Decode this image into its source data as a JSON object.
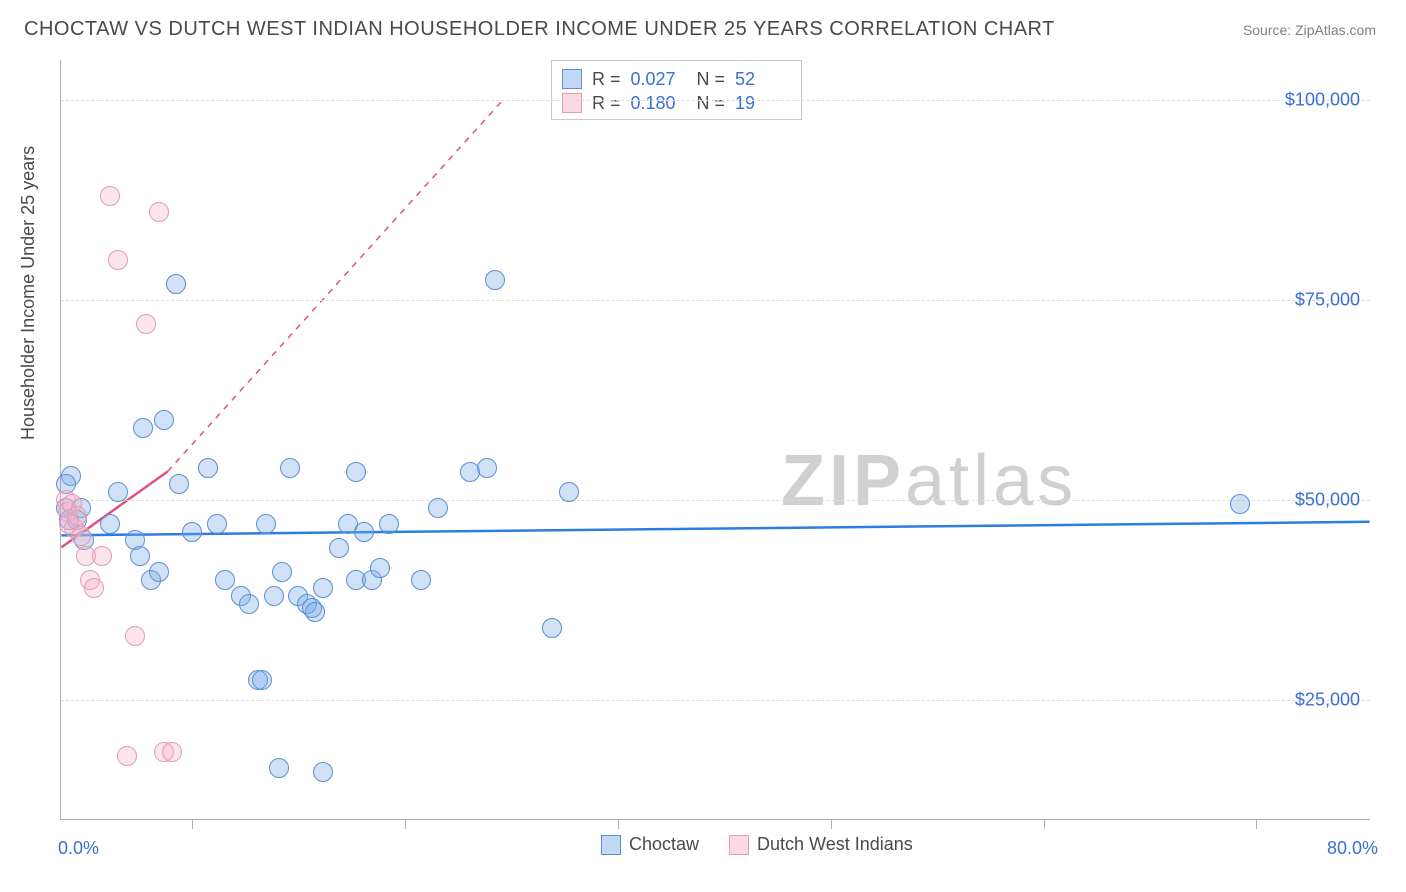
{
  "title": "CHOCTAW VS DUTCH WEST INDIAN HOUSEHOLDER INCOME UNDER 25 YEARS CORRELATION CHART",
  "source": "Source: ZipAtlas.com",
  "watermark_a": "ZIP",
  "watermark_b": "atlas",
  "yaxis_title": "Householder Income Under 25 years",
  "chart": {
    "type": "scatter",
    "xlim": [
      0,
      80
    ],
    "ylim": [
      10000,
      105000
    ],
    "x_min_label": "0.0%",
    "x_max_label": "80.0%",
    "grid_color": "#dcdcdc",
    "axis_color": "#b0b0b0",
    "background_color": "#ffffff",
    "marker_radius": 10,
    "yticks": [
      {
        "v": 25000,
        "label": "$25,000"
      },
      {
        "v": 50000,
        "label": "$50,000"
      },
      {
        "v": 75000,
        "label": "$75,000"
      },
      {
        "v": 100000,
        "label": "$100,000"
      }
    ],
    "xticks": [
      8,
      21,
      34,
      47,
      60,
      73
    ],
    "series": [
      {
        "key": "a",
        "name": "Choctaw",
        "color_fill": "rgba(120,170,230,0.35)",
        "color_stroke": "#5a8fd6",
        "trend_color": "#2b7de1",
        "trend": {
          "x1": 0,
          "y1": 45500,
          "x2": 80,
          "y2": 47200,
          "dashed": false,
          "width": 2.5
        },
        "R": "0.027",
        "N": "52",
        "points": [
          [
            0.3,
            49000
          ],
          [
            0.5,
            47500
          ],
          [
            0.6,
            53000
          ],
          [
            1.2,
            49000
          ],
          [
            1.4,
            45000
          ],
          [
            3.0,
            47000
          ],
          [
            3.5,
            51000
          ],
          [
            4.5,
            45000
          ],
          [
            4.8,
            43000
          ],
          [
            5.0,
            59000
          ],
          [
            5.5,
            40000
          ],
          [
            6.0,
            41000
          ],
          [
            6.3,
            60000
          ],
          [
            7.0,
            77000
          ],
          [
            7.2,
            52000
          ],
          [
            8.0,
            46000
          ],
          [
            9.0,
            54000
          ],
          [
            9.5,
            47000
          ],
          [
            10.0,
            40000
          ],
          [
            11.0,
            38000
          ],
          [
            11.5,
            37000
          ],
          [
            12.0,
            27500
          ],
          [
            12.3,
            27500
          ],
          [
            12.5,
            47000
          ],
          [
            13.0,
            38000
          ],
          [
            13.3,
            16500
          ],
          [
            13.5,
            41000
          ],
          [
            14.0,
            54000
          ],
          [
            14.5,
            38000
          ],
          [
            15.0,
            37000
          ],
          [
            15.3,
            36500
          ],
          [
            15.5,
            36000
          ],
          [
            16.0,
            39000
          ],
          [
            16.0,
            16000
          ],
          [
            17.0,
            44000
          ],
          [
            17.5,
            47000
          ],
          [
            18.0,
            40000
          ],
          [
            18.0,
            53500
          ],
          [
            18.5,
            46000
          ],
          [
            19.0,
            40000
          ],
          [
            19.5,
            41500
          ],
          [
            20.0,
            47000
          ],
          [
            22.0,
            40000
          ],
          [
            23.0,
            49000
          ],
          [
            25.0,
            53500
          ],
          [
            26.0,
            54000
          ],
          [
            26.5,
            77500
          ],
          [
            30.0,
            34000
          ],
          [
            31.0,
            51000
          ],
          [
            72.0,
            49500
          ],
          [
            0.3,
            52000
          ],
          [
            1.0,
            47500
          ]
        ]
      },
      {
        "key": "b",
        "name": "Dutch West Indians",
        "color_fill": "rgba(245,180,200,0.35)",
        "color_stroke": "#e69ab0",
        "trend_color": "#e05080",
        "trend_solid": {
          "x1": 0,
          "y1": 44000,
          "x2": 6.5,
          "y2": 53500,
          "dashed": false,
          "width": 2.5
        },
        "trend": {
          "x1": 6.5,
          "y1": 53500,
          "x2": 27,
          "y2": 100000,
          "dashed": true,
          "width": 1.5
        },
        "R": "0.180",
        "N": "19",
        "points": [
          [
            0.3,
            50000
          ],
          [
            0.4,
            48500
          ],
          [
            0.5,
            47000
          ],
          [
            0.7,
            49500
          ],
          [
            0.8,
            46500
          ],
          [
            1.0,
            48000
          ],
          [
            1.2,
            45500
          ],
          [
            1.5,
            43000
          ],
          [
            1.8,
            40000
          ],
          [
            2.0,
            39000
          ],
          [
            2.5,
            43000
          ],
          [
            3.0,
            88000
          ],
          [
            3.5,
            80000
          ],
          [
            4.0,
            18000
          ],
          [
            4.5,
            33000
          ],
          [
            5.2,
            72000
          ],
          [
            6.0,
            86000
          ],
          [
            6.3,
            18500
          ],
          [
            6.8,
            18500
          ]
        ]
      }
    ]
  },
  "legend_bottom": [
    {
      "swatch": "a",
      "label": "Choctaw"
    },
    {
      "swatch": "b",
      "label": "Dutch West Indians"
    }
  ],
  "legend_top_labels": {
    "R": "R =",
    "N": "N ="
  }
}
